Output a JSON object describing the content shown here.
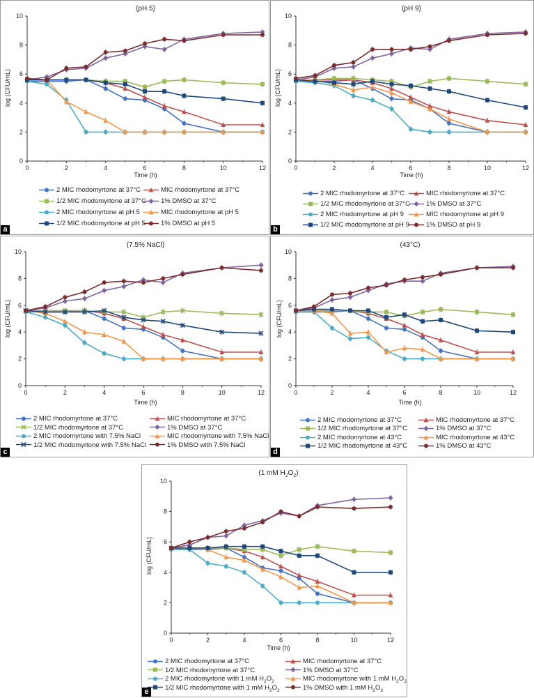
{
  "chart_data": [
    {
      "panel": "a",
      "type": "line",
      "title": "(pH 5)",
      "xlabel": "Time (h)",
      "ylabel": "log (CFU/mL)",
      "xlim": [
        0,
        12
      ],
      "ylim": [
        0,
        10
      ],
      "x_ticks": [
        "0",
        "2",
        "4",
        "6",
        "8",
        "10",
        "12"
      ],
      "y_ticks": [
        "0",
        "2",
        "4",
        "6",
        "8",
        "10"
      ],
      "x": [
        0,
        1,
        2,
        3,
        4,
        5,
        6,
        7,
        8,
        10,
        12
      ],
      "series": [
        {
          "name": "2 MIC rhodomyrtone at 37°C",
          "color": "#4472c4",
          "marker": "circle",
          "values": [
            5.5,
            5.5,
            5.5,
            5.6,
            5.0,
            4.3,
            4.2,
            3.6,
            2.6,
            2.0,
            2.0
          ]
        },
        {
          "name": "MIC rhodomyrtone at 37°C",
          "color": "#c0504d",
          "marker": "triangle",
          "values": [
            5.6,
            5.6,
            5.6,
            5.6,
            5.4,
            5.0,
            4.4,
            3.8,
            3.4,
            2.5,
            2.5
          ]
        },
        {
          "name": "1/2 MIC rhodomyrtone at 37°C",
          "color": "#9bbb59",
          "marker": "square",
          "values": [
            5.6,
            5.6,
            5.6,
            5.6,
            5.5,
            5.5,
            5.1,
            5.5,
            5.6,
            5.4,
            5.3
          ]
        },
        {
          "name": "1% DMSO at 37°C",
          "color": "#8064a2",
          "marker": "diamond",
          "values": [
            5.6,
            5.8,
            6.3,
            6.4,
            7.1,
            7.4,
            7.9,
            7.7,
            8.4,
            8.8,
            8.9
          ]
        },
        {
          "name": "2 MIC rhodomyrtone at pH 5",
          "color": "#4bacc6",
          "marker": "circle",
          "values": [
            5.5,
            5.3,
            4.2,
            2.0,
            2.0,
            2.0,
            2.0,
            2.0,
            2.0,
            2.0,
            2.0
          ]
        },
        {
          "name": "MIC rhodomyrtone at pH 5",
          "color": "#f79646",
          "marker": "triangle",
          "values": [
            5.6,
            5.6,
            4.1,
            3.4,
            2.8,
            2.0,
            2.0,
            2.0,
            2.0,
            2.0,
            2.0
          ]
        },
        {
          "name": "1/2 MIC rhodomyrtone at pH 5",
          "color": "#1f497d",
          "marker": "square",
          "values": [
            5.6,
            5.6,
            5.6,
            5.6,
            5.4,
            5.3,
            4.8,
            4.8,
            4.5,
            4.3,
            4.0
          ]
        },
        {
          "name": "1% DMSO at pH 5",
          "color": "#7b2c2c",
          "marker": "circle",
          "values": [
            5.7,
            5.6,
            6.4,
            6.5,
            7.5,
            7.6,
            8.1,
            8.4,
            8.3,
            8.7,
            8.7
          ]
        }
      ]
    },
    {
      "panel": "b",
      "type": "line",
      "title": "(pH 9)",
      "xlabel": "Time (h)",
      "ylabel": "log (CFU/mL)",
      "xlim": [
        0,
        12
      ],
      "ylim": [
        0,
        10
      ],
      "x_ticks": [
        "0",
        "2",
        "4",
        "6",
        "8",
        "10",
        "12"
      ],
      "y_ticks": [
        "0",
        "2",
        "4",
        "6",
        "8",
        "10"
      ],
      "x": [
        0,
        1,
        2,
        3,
        4,
        5,
        6,
        7,
        8,
        10,
        12
      ],
      "series": [
        {
          "name": "2 MIC rhodomyrtone at 37°C",
          "color": "#4472c4",
          "marker": "circle",
          "values": [
            5.5,
            5.5,
            5.5,
            5.6,
            5.0,
            4.3,
            4.2,
            3.6,
            2.6,
            2.0,
            2.0
          ]
        },
        {
          "name": "MIC rhodomyrtone at 37°C",
          "color": "#c0504d",
          "marker": "triangle",
          "values": [
            5.6,
            5.6,
            5.6,
            5.6,
            5.4,
            5.0,
            4.4,
            3.8,
            3.4,
            2.8,
            2.5
          ]
        },
        {
          "name": "1/2 MIC rhodomyrtone at 37°C",
          "color": "#9bbb59",
          "marker": "square",
          "values": [
            5.6,
            5.6,
            5.7,
            5.7,
            5.6,
            5.5,
            5.1,
            5.5,
            5.7,
            5.5,
            5.3
          ]
        },
        {
          "name": "1% DMSO at 37°C",
          "color": "#8064a2",
          "marker": "diamond",
          "values": [
            5.6,
            5.8,
            6.4,
            6.5,
            7.1,
            7.4,
            7.8,
            7.7,
            8.4,
            8.8,
            8.9
          ]
        },
        {
          "name": "2 MIC rhodomyrtone at pH 9",
          "color": "#4bacc6",
          "marker": "circle",
          "values": [
            5.5,
            5.4,
            5.2,
            4.5,
            4.2,
            3.6,
            2.2,
            2.0,
            2.0,
            2.0,
            2.0
          ]
        },
        {
          "name": "MIC rhodomyrtone at pH 9",
          "color": "#f79646",
          "marker": "triangle",
          "values": [
            5.6,
            5.6,
            5.3,
            4.9,
            5.1,
            4.7,
            4.1,
            3.6,
            2.9,
            2.0,
            2.0
          ]
        },
        {
          "name": "1/2 MIC rhodomyrtone at pH 9",
          "color": "#1f497d",
          "marker": "square",
          "values": [
            5.6,
            5.5,
            5.4,
            5.3,
            5.5,
            5.3,
            5.2,
            5.0,
            4.8,
            4.2,
            3.7
          ]
        },
        {
          "name": "1% DMSO at pH 9",
          "color": "#7b2c2c",
          "marker": "circle",
          "values": [
            5.7,
            5.9,
            6.6,
            6.8,
            7.7,
            7.7,
            7.7,
            7.9,
            8.3,
            8.7,
            8.8
          ]
        }
      ]
    },
    {
      "panel": "c",
      "type": "line",
      "title": "(7.5% NaCl)",
      "xlabel": "Time (h)",
      "ylabel": "log (CFU/mL)",
      "xlim": [
        0,
        12
      ],
      "ylim": [
        0,
        10
      ],
      "x_ticks": [
        "0",
        "2",
        "4",
        "6",
        "8",
        "10",
        "12"
      ],
      "y_ticks": [
        "0",
        "2",
        "4",
        "6",
        "8",
        "10"
      ],
      "x": [
        0,
        1,
        2,
        3,
        4,
        5,
        6,
        7,
        8,
        10,
        12
      ],
      "series": [
        {
          "name": "2 MIC rhodomyrtone at 37°C",
          "color": "#4472c4",
          "marker": "circle",
          "values": [
            5.5,
            5.5,
            5.5,
            5.6,
            5.0,
            4.3,
            4.2,
            3.6,
            2.6,
            2.0,
            2.0
          ]
        },
        {
          "name": "MIC rhodomyrtone at 37°C",
          "color": "#c0504d",
          "marker": "triangle",
          "values": [
            5.6,
            5.6,
            5.6,
            5.6,
            5.4,
            5.0,
            4.4,
            3.8,
            3.4,
            2.5,
            2.5
          ]
        },
        {
          "name": "1/2 MIC rhodomyrtone at 37°C",
          "color": "#9bbb59",
          "marker": "x",
          "values": [
            5.6,
            5.6,
            5.6,
            5.6,
            5.5,
            5.5,
            5.1,
            5.5,
            5.6,
            5.4,
            5.3
          ]
        },
        {
          "name": "1% DMSO at 37°C",
          "color": "#8064a2",
          "marker": "diamond",
          "values": [
            5.6,
            5.8,
            6.3,
            6.5,
            7.1,
            7.4,
            7.9,
            7.7,
            8.4,
            8.8,
            9.0
          ]
        },
        {
          "name": "2 MIC rhodomyrtone with 7.5% NaCl",
          "color": "#4bacc6",
          "marker": "circle",
          "values": [
            5.5,
            5.1,
            4.5,
            3.2,
            2.4,
            2.0,
            2.0,
            2.0,
            2.0,
            2.0,
            2.0
          ]
        },
        {
          "name": "MIC rhodomyrtone with 7.5% NaCl",
          "color": "#f79646",
          "marker": "triangle",
          "values": [
            5.6,
            5.4,
            4.8,
            4.0,
            3.8,
            3.3,
            2.0,
            2.0,
            2.0,
            2.0,
            2.0
          ]
        },
        {
          "name": "1/2 MIC rhodomyrtone with 7.5% NaCl",
          "color": "#1f497d",
          "marker": "x",
          "values": [
            5.6,
            5.5,
            5.5,
            5.5,
            5.6,
            5.1,
            4.9,
            4.8,
            4.5,
            4.0,
            3.9
          ]
        },
        {
          "name": "1% DMSO with 7.5% NaCl",
          "color": "#7b2c2c",
          "marker": "circle",
          "values": [
            5.6,
            5.9,
            6.6,
            7.0,
            7.7,
            7.8,
            7.7,
            8.0,
            8.3,
            8.8,
            8.6
          ]
        }
      ]
    },
    {
      "panel": "d",
      "type": "line",
      "title": "(43°C)",
      "xlabel": "Time (h)",
      "ylabel": "log (CFU/mL)",
      "xlim": [
        0,
        12
      ],
      "ylim": [
        0,
        10
      ],
      "x_ticks": [
        "0",
        "2",
        "4",
        "6",
        "8",
        "10",
        "12"
      ],
      "y_ticks": [
        "0",
        "2",
        "4",
        "6",
        "8",
        "10"
      ],
      "x": [
        0,
        1,
        2,
        3,
        4,
        5,
        6,
        7,
        8,
        10,
        12
      ],
      "series": [
        {
          "name": "2 MIC rhodomyrtone at 37°C",
          "color": "#4472c4",
          "marker": "circle",
          "values": [
            5.5,
            5.5,
            5.5,
            5.6,
            5.0,
            4.3,
            4.2,
            3.6,
            2.6,
            2.0,
            2.0
          ]
        },
        {
          "name": "MIC rhodomyrtone at 37°C",
          "color": "#c0504d",
          "marker": "triangle",
          "values": [
            5.6,
            5.6,
            5.6,
            5.6,
            5.4,
            5.0,
            4.5,
            3.8,
            3.4,
            2.5,
            2.5
          ]
        },
        {
          "name": "1/2 MIC rhodomyrtone at 37°C",
          "color": "#9bbb59",
          "marker": "square",
          "values": [
            5.6,
            5.6,
            5.6,
            5.6,
            5.5,
            5.5,
            5.2,
            5.5,
            5.7,
            5.5,
            5.3
          ]
        },
        {
          "name": "1% DMSO at 37°C",
          "color": "#8064a2",
          "marker": "diamond",
          "values": [
            5.6,
            5.8,
            6.4,
            6.6,
            7.1,
            7.6,
            7.8,
            7.8,
            8.4,
            8.8,
            8.9
          ]
        },
        {
          "name": "2 MIC rhodomyrtone at 43°C",
          "color": "#4bacc6",
          "marker": "circle",
          "values": [
            5.5,
            5.5,
            4.3,
            3.5,
            3.6,
            2.6,
            2.0,
            2.0,
            2.0,
            2.0,
            2.0
          ]
        },
        {
          "name": "MIC rhodomyrtone at 43°C",
          "color": "#f79646",
          "marker": "triangle",
          "values": [
            5.6,
            5.6,
            5.4,
            3.9,
            4.0,
            2.5,
            2.8,
            2.7,
            2.0,
            2.0,
            2.0
          ]
        },
        {
          "name": "1/2 MIC rhodomyrtone at 43°C",
          "color": "#1f497d",
          "marker": "square",
          "values": [
            5.6,
            5.7,
            5.7,
            5.6,
            5.6,
            5.1,
            5.3,
            4.8,
            4.9,
            4.1,
            4.0
          ]
        },
        {
          "name": "1% DMSO at 43°C",
          "color": "#7b2c2c",
          "marker": "circle",
          "values": [
            5.6,
            5.9,
            6.8,
            6.9,
            7.3,
            7.5,
            7.9,
            8.1,
            8.3,
            8.8,
            8.8
          ]
        }
      ]
    },
    {
      "panel": "e",
      "type": "line",
      "title": "(1 mM H2O2)",
      "xlabel": "Time (h)",
      "ylabel": "log (CFU/mL)",
      "xlim": [
        0,
        12
      ],
      "ylim": [
        0,
        10
      ],
      "x_ticks": [
        "0",
        "2",
        "4",
        "6",
        "8",
        "10",
        "12"
      ],
      "y_ticks": [
        "0",
        "2",
        "4",
        "6",
        "8",
        "10"
      ],
      "x": [
        0,
        1,
        2,
        3,
        4,
        5,
        6,
        7,
        8,
        10,
        12
      ],
      "series": [
        {
          "name": "2 MIC rhodomyrtone at 37°C",
          "color": "#4472c4",
          "marker": "circle",
          "values": [
            5.5,
            5.5,
            5.5,
            5.6,
            5.0,
            4.3,
            4.1,
            3.6,
            2.6,
            2.0,
            2.0
          ]
        },
        {
          "name": "MIC rhodomyrtone at 37°C",
          "color": "#c0504d",
          "marker": "triangle",
          "values": [
            5.6,
            5.6,
            5.6,
            5.6,
            5.4,
            5.0,
            4.4,
            3.8,
            3.4,
            2.5,
            2.5
          ]
        },
        {
          "name": "1/2 MIC rhodomyrtone at 37°C",
          "color": "#9bbb59",
          "marker": "square",
          "values": [
            5.6,
            5.6,
            5.6,
            5.6,
            5.5,
            5.5,
            5.1,
            5.5,
            5.7,
            5.4,
            5.3
          ]
        },
        {
          "name": "1% DMSO at 37°C",
          "color": "#8064a2",
          "marker": "diamond",
          "values": [
            5.6,
            5.8,
            6.3,
            6.4,
            7.1,
            7.4,
            7.9,
            7.7,
            8.4,
            8.8,
            8.9
          ]
        },
        {
          "name": "2 MIC rhodomyrtone with 1 mM H2O2",
          "color": "#4bacc6",
          "marker": "circle",
          "values": [
            5.5,
            5.5,
            4.6,
            4.4,
            4.0,
            3.1,
            2.0,
            2.0,
            2.0,
            2.0,
            2.0
          ]
        },
        {
          "name": "MIC rhodomyrtone with 1 mM H2O2",
          "color": "#f79646",
          "marker": "triangle",
          "values": [
            5.6,
            5.6,
            5.5,
            5.0,
            4.8,
            4.2,
            3.7,
            3.0,
            3.1,
            2.0,
            2.0
          ]
        },
        {
          "name": "1/2 MIC rhodomyrtone with 1 mM H2O2",
          "color": "#1f497d",
          "marker": "square",
          "values": [
            5.6,
            5.6,
            5.6,
            5.7,
            5.7,
            5.7,
            5.4,
            5.1,
            5.1,
            4.0,
            4.0
          ]
        },
        {
          "name": "1% DMSO with 1 mM H2O2",
          "color": "#7b2c2c",
          "marker": "circle",
          "values": [
            5.6,
            6.0,
            6.3,
            6.7,
            6.9,
            7.3,
            8.0,
            7.7,
            8.3,
            8.2,
            8.3
          ]
        }
      ]
    }
  ]
}
